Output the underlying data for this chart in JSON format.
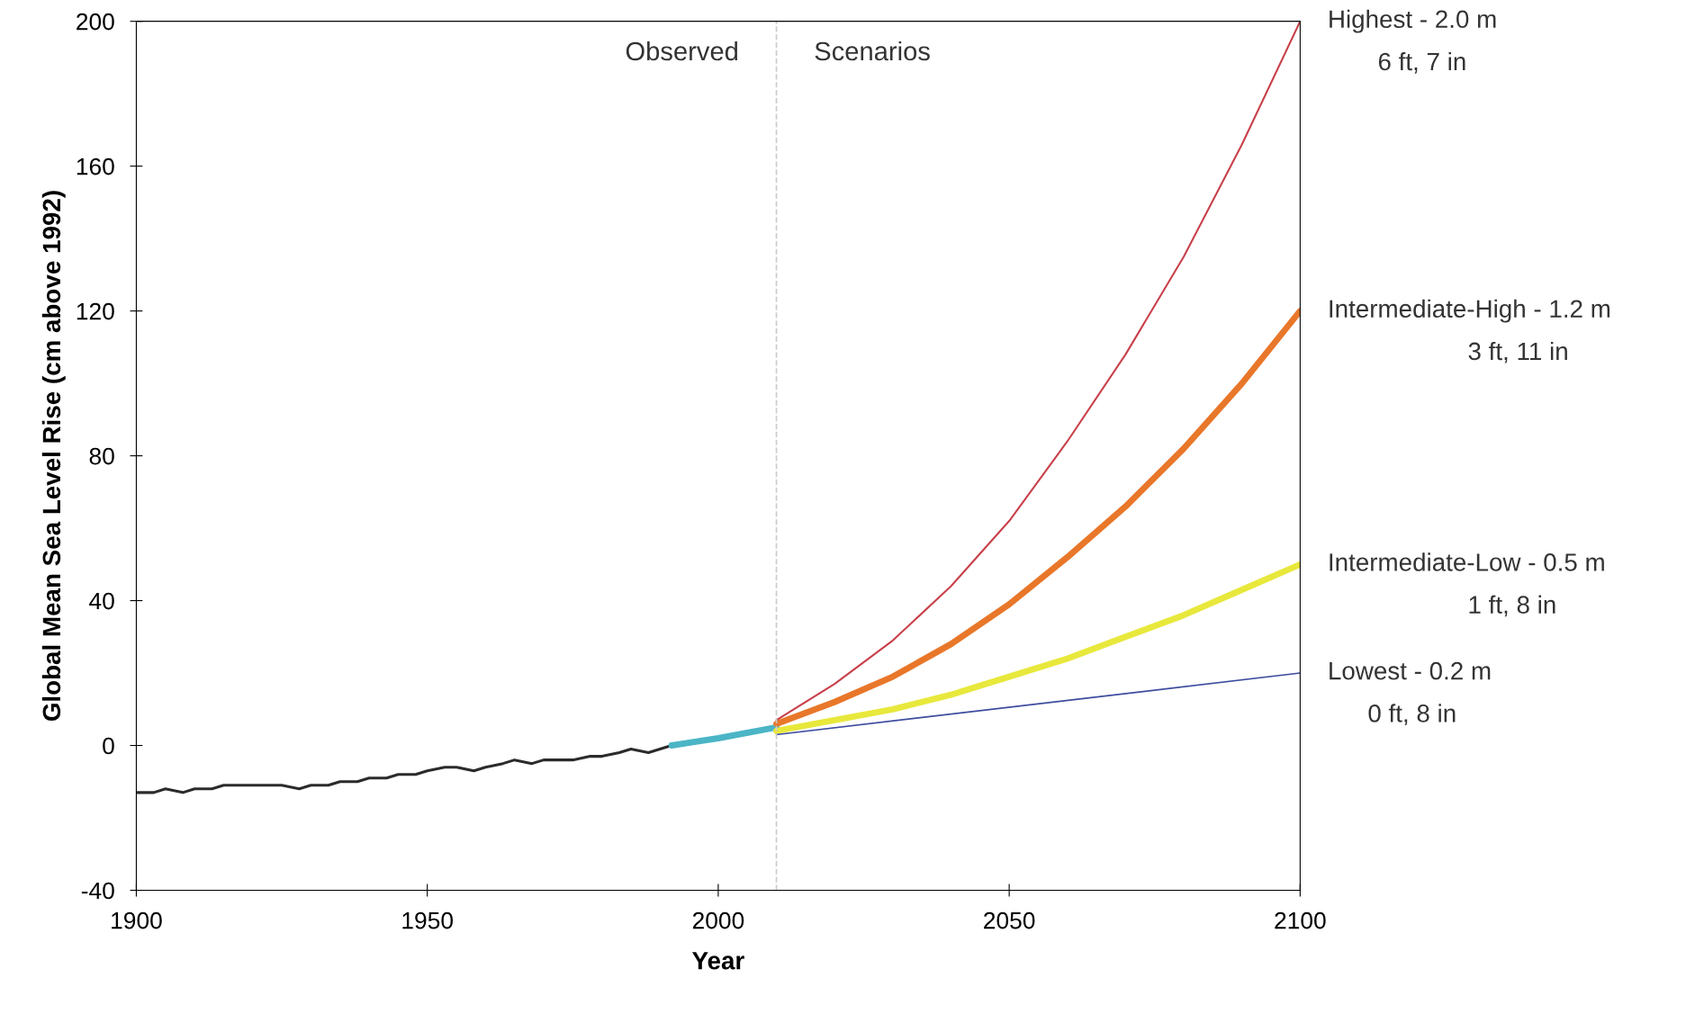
{
  "chart_data": {
    "type": "line",
    "xlabel": "Year",
    "ylabel": "Global Mean Sea Level Rise (cm above 1992)",
    "xlim": [
      1900,
      2100
    ],
    "xticks": [
      1900,
      1950,
      2000,
      2050,
      2100
    ],
    "ylim": [
      -40,
      200
    ],
    "yticks": [
      -40,
      0,
      40,
      80,
      120,
      160,
      200
    ],
    "grid": false,
    "series": [
      {
        "color": "#2b2b2b",
        "x": [
          1900,
          1903,
          1905,
          1908,
          1910,
          1913,
          1915,
          1918,
          1920,
          1925,
          1928,
          1930,
          1933,
          1935,
          1938,
          1940,
          1943,
          1945,
          1948,
          1950,
          1953,
          1955,
          1958,
          1960,
          1963,
          1965,
          1968,
          1970,
          1973,
          1975,
          1978,
          1980,
          1983,
          1985,
          1988,
          1990,
          1992
        ],
        "values": [
          -13,
          -13,
          -12,
          -13,
          -12,
          -12,
          -11,
          -11,
          -11,
          -11,
          -12,
          -11,
          -11,
          -10,
          -10,
          -9,
          -9,
          -8,
          -8,
          -7,
          -6,
          -6,
          -7,
          -6,
          -5,
          -4,
          -5,
          -4,
          -4,
          -4,
          -3,
          -3,
          -2,
          -1,
          -2,
          -1,
          0
        ]
      },
      {
        "color": "#4bb5c6",
        "x": [
          1992,
          2000,
          2010
        ],
        "values": [
          0,
          2,
          5
        ]
      },
      {
        "name": "Highest - 2.0 m",
        "color": "#c8404a",
        "x": [
          2010,
          2020,
          2030,
          2040,
          2050,
          2060,
          2070,
          2080,
          2090,
          2100
        ],
        "values": [
          7,
          17,
          29,
          44,
          62,
          84,
          108,
          135,
          166,
          200
        ]
      },
      {
        "name": "Intermediate-High - 1.2 m",
        "color": "#e8772a",
        "x": [
          2010,
          2020,
          2030,
          2040,
          2050,
          2060,
          2070,
          2080,
          2090,
          2100
        ],
        "values": [
          6,
          12,
          19,
          28,
          39,
          52,
          66,
          82,
          100,
          120
        ]
      },
      {
        "name": "Intermediate-Low - 0.5 m",
        "color": "#e8e83c",
        "x": [
          2010,
          2020,
          2030,
          2040,
          2050,
          2060,
          2070,
          2080,
          2090,
          2100
        ],
        "values": [
          4,
          7,
          10,
          14,
          19,
          24,
          30,
          36,
          43,
          50
        ]
      },
      {
        "name": "Lowest - 0.2 m",
        "color": "#3d4b9e",
        "x": [
          2010,
          2100
        ],
        "values": [
          3,
          20
        ]
      }
    ],
    "ref_lines": [
      {
        "axis": "x",
        "value": 2010,
        "color": "#cccccc",
        "line_style": "dashed"
      }
    ],
    "annotations": [
      "Observed",
      "Scenarios",
      "6 ft, 7 in",
      "3 ft, 11 in",
      "1 ft, 8 in",
      "0 ft, 8 in"
    ]
  }
}
